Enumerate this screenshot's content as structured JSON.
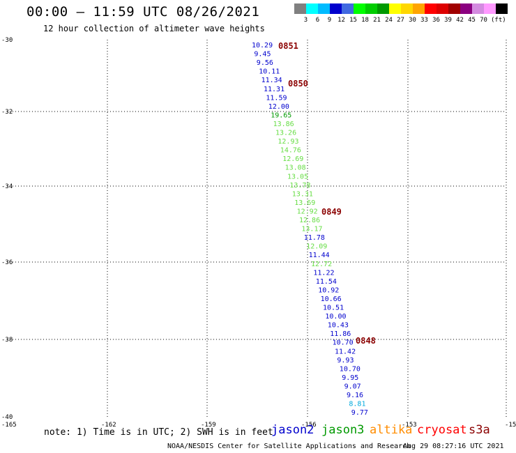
{
  "header": {
    "title": "00:00 – 11:59 UTC 08/26/2021",
    "subtitle": "12 hour collection of altimeter wave heights"
  },
  "scale": {
    "colors": [
      "#808080",
      "#00ffff",
      "#00bbff",
      "#0000cd",
      "#4169e1",
      "#00ff00",
      "#00cd00",
      "#009900",
      "#ffff00",
      "#ffd700",
      "#ffa500",
      "#ff0000",
      "#dd0000",
      "#a00000",
      "#8b0080",
      "#d48be0",
      "#ff99ff",
      "#000000"
    ],
    "labels": [
      "3",
      "6",
      "9",
      "12",
      "15",
      "18",
      "21",
      "24",
      "27",
      "30",
      "33",
      "36",
      "39",
      "42",
      "45",
      "70",
      "(ft)"
    ]
  },
  "axes": {
    "lat_labels": [
      "-30",
      "-32",
      "-34",
      "-36",
      "-38",
      "-40"
    ],
    "lon_labels": [
      "-165",
      "-162",
      "-159",
      "-156",
      "-153",
      "-15"
    ]
  },
  "observations": [
    {
      "v": "10.29",
      "c": "#0000cd"
    },
    {
      "v": "9.45",
      "c": "#0000cd"
    },
    {
      "v": "9.56",
      "c": "#0000cd"
    },
    {
      "v": "10.11",
      "c": "#0000cd"
    },
    {
      "v": "11.34",
      "c": "#0000cd"
    },
    {
      "v": "11.31",
      "c": "#0000cd"
    },
    {
      "v": "11.59",
      "c": "#0000cd"
    },
    {
      "v": "12.00",
      "c": "#0000cd"
    },
    {
      "v": "19.65",
      "c": "#009900"
    },
    {
      "v": "13.86",
      "c": "#66dd44"
    },
    {
      "v": "13.26",
      "c": "#66dd44"
    },
    {
      "v": "12.93",
      "c": "#66dd44"
    },
    {
      "v": "14.76",
      "c": "#66dd44"
    },
    {
      "v": "12.69",
      "c": "#66dd44"
    },
    {
      "v": "13.08",
      "c": "#66dd44"
    },
    {
      "v": "13.05",
      "c": "#66dd44"
    },
    {
      "v": "13.78",
      "c": "#66dd44"
    },
    {
      "v": "13.31",
      "c": "#66dd44"
    },
    {
      "v": "13.69",
      "c": "#66dd44"
    },
    {
      "v": "12.92",
      "c": "#66dd44"
    },
    {
      "v": "12.86",
      "c": "#66dd44"
    },
    {
      "v": "13.17",
      "c": "#66dd44"
    },
    {
      "v": "11.78",
      "c": "#0000cd"
    },
    {
      "v": "12.09",
      "c": "#66dd44"
    },
    {
      "v": "11.44",
      "c": "#0000cd"
    },
    {
      "v": "12.72",
      "c": "#66dd44"
    },
    {
      "v": "11.22",
      "c": "#0000cd"
    },
    {
      "v": "11.54",
      "c": "#0000cd"
    },
    {
      "v": "10.92",
      "c": "#0000cd"
    },
    {
      "v": "10.66",
      "c": "#0000cd"
    },
    {
      "v": "10.51",
      "c": "#0000cd"
    },
    {
      "v": "10.00",
      "c": "#0000cd"
    },
    {
      "v": "10.43",
      "c": "#0000cd"
    },
    {
      "v": "11.86",
      "c": "#0000cd"
    },
    {
      "v": "10.70",
      "c": "#0000cd"
    },
    {
      "v": "11.42",
      "c": "#0000cd"
    },
    {
      "v": "9.93",
      "c": "#0000cd"
    },
    {
      "v": "10.70",
      "c": "#0000cd"
    },
    {
      "v": "9.95",
      "c": "#0000cd"
    },
    {
      "v": "9.07",
      "c": "#0000cd"
    },
    {
      "v": "9.16",
      "c": "#0000cd"
    },
    {
      "v": "8.81",
      "c": "#00aadd"
    },
    {
      "v": "9.77",
      "c": "#0000cd"
    }
  ],
  "time_marks": [
    "0851",
    "0850",
    "0849",
    "0848"
  ],
  "footer": {
    "note": "note: 1) Time is in UTC; 2) SWH is in feet",
    "legend": [
      {
        "label": "jason2",
        "color": "#0000cd"
      },
      {
        "label": "jason3",
        "color": "#009900"
      },
      {
        "label": "altika",
        "color": "#ff8c00"
      },
      {
        "label": "cryosat",
        "color": "#ff0000"
      },
      {
        "label": "s3a",
        "color": "#8b0000"
      }
    ],
    "credit": "NOAA/NESDIS Center for Satellite Applications and Research",
    "timestamp": "Aug 29 08:27:16 UTC 2021"
  }
}
